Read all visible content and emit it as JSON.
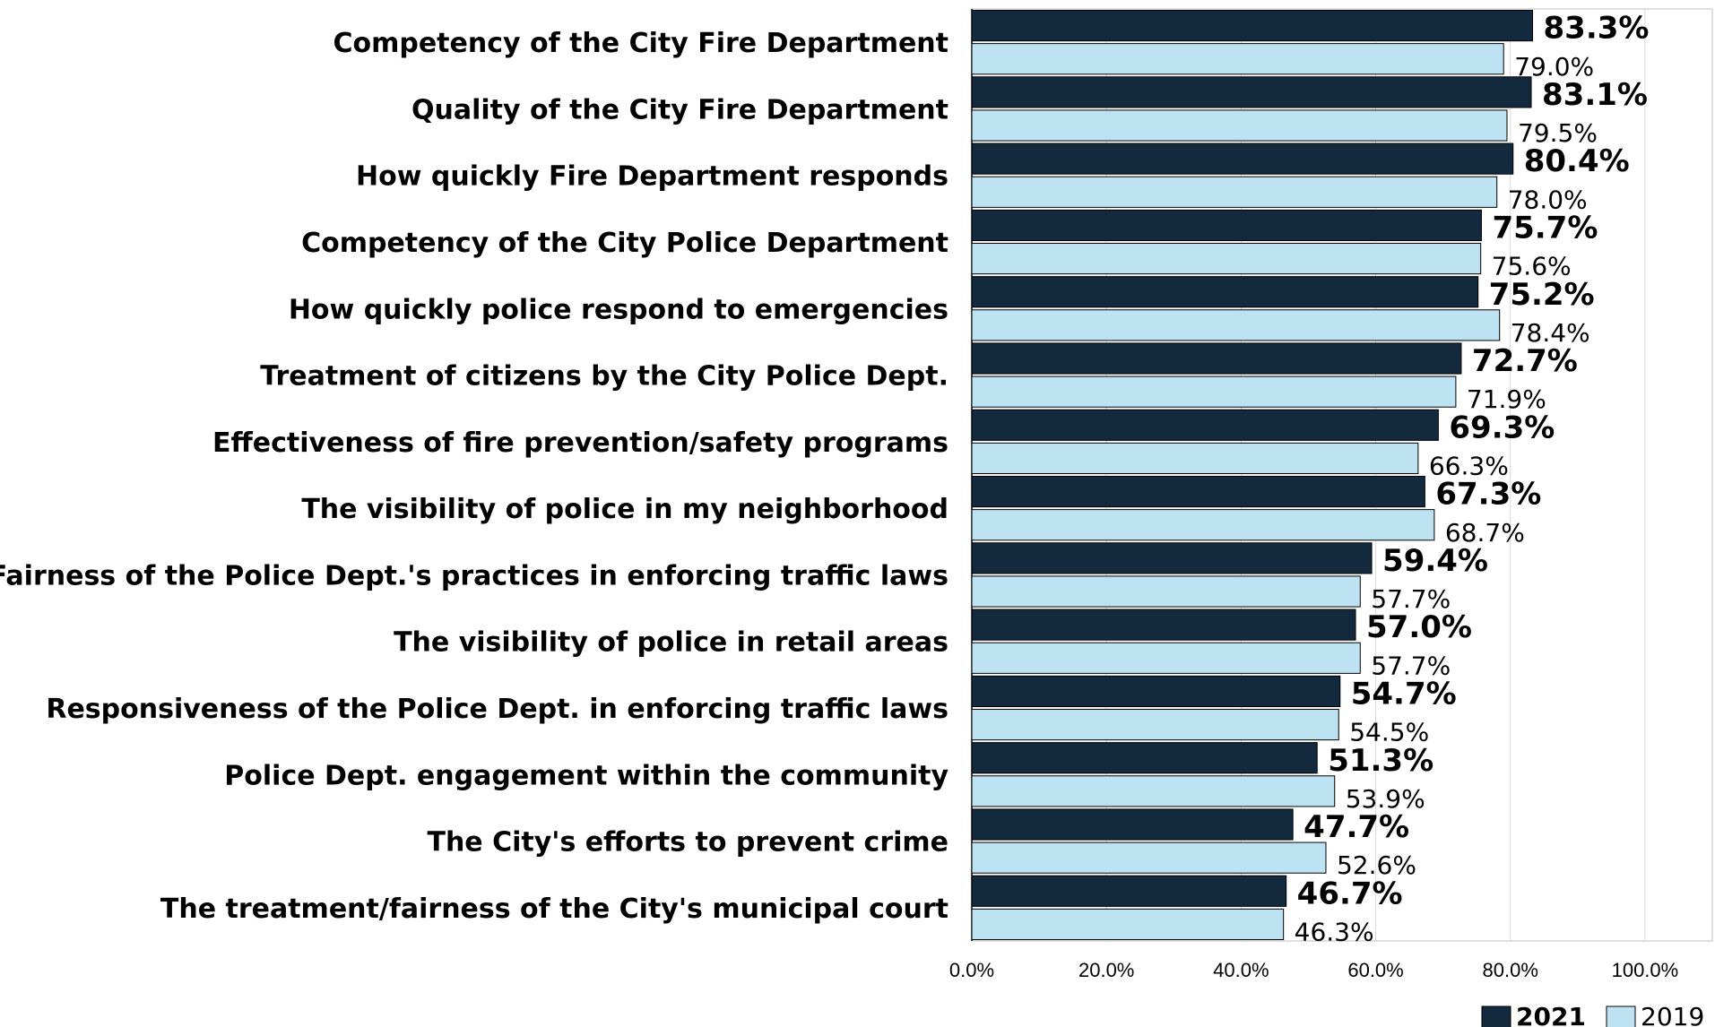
{
  "chart_data": {
    "type": "bar",
    "orientation": "horizontal",
    "categories": [
      "Competency of the City Fire Department",
      "Quality of the City Fire Department",
      "How quickly Fire Department responds",
      "Competency of the City Police Department",
      "How quickly police respond to emergencies",
      "Treatment of citizens by the City Police Dept.",
      "Effectiveness of fire prevention/safety programs",
      "The visibility of police in my neighborhood",
      "Fairness of the Police Dept.'s practices in enforcing traffic laws",
      "The visibility of police in retail areas",
      "Responsiveness of the Police Dept. in enforcing traffic laws",
      "Police Dept. engagement within the community",
      "The City's efforts to prevent crime",
      "The treatment/fairness of the City's municipal court"
    ],
    "series": [
      {
        "name": "2021",
        "color": "#13293d",
        "values": [
          83.3,
          83.1,
          80.4,
          75.7,
          75.2,
          72.7,
          69.3,
          67.3,
          59.4,
          57.0,
          54.7,
          51.3,
          47.7,
          46.7
        ],
        "labels": [
          "83.3%",
          "83.1%",
          "80.4%",
          "75.7%",
          "75.2%",
          "72.7%",
          "69.3%",
          "67.3%",
          "59.4%",
          "57.0%",
          "54.7%",
          "51.3%",
          "47.7%",
          "46.7%"
        ]
      },
      {
        "name": "2019",
        "color": "#bde3f3",
        "values": [
          79.0,
          79.5,
          78.0,
          75.6,
          78.4,
          71.9,
          66.3,
          68.7,
          57.7,
          57.7,
          54.5,
          53.9,
          52.6,
          46.3
        ],
        "labels": [
          "79.0%",
          "79.5%",
          "78.0%",
          "75.6%",
          "78.4%",
          "71.9%",
          "66.3%",
          "68.7%",
          "57.7%",
          "57.7%",
          "54.5%",
          "53.9%",
          "52.6%",
          "46.3%"
        ]
      }
    ],
    "xlim": [
      0,
      110
    ],
    "xticks": [
      "0.0%",
      "20.0%",
      "40.0%",
      "60.0%",
      "80.0%",
      "100.0%"
    ],
    "xtick_values": [
      0,
      20,
      40,
      60,
      80,
      100
    ],
    "grid": "vertical",
    "legend_position": "bottom-right",
    "title": "",
    "xlabel": "",
    "ylabel": ""
  }
}
